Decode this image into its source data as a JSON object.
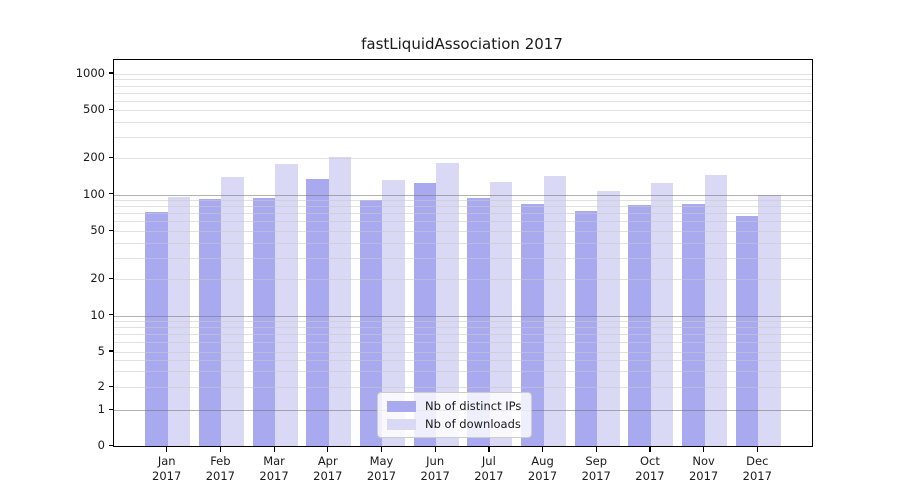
{
  "chart_data": {
    "type": "bar",
    "title": "fastLiquidAssociation 2017",
    "categories": [
      "Jan",
      "Feb",
      "Mar",
      "Apr",
      "May",
      "Jun",
      "Jul",
      "Aug",
      "Sep",
      "Oct",
      "Nov",
      "Dec"
    ],
    "category_year_line": "2017",
    "series": [
      {
        "name": "Nb of distinct IPs",
        "color": "#a9a9f0",
        "values": [
          72,
          92,
          94,
          135,
          90,
          124,
          94,
          83,
          73,
          82,
          84,
          67
        ]
      },
      {
        "name": "Nb of downloads",
        "color": "#d9d9f6",
        "values": [
          96,
          140,
          180,
          207,
          132,
          183,
          128,
          144,
          108,
          124,
          146,
          100
        ]
      }
    ],
    "yscale": "symlog",
    "ytick_labels": [
      "0",
      "1",
      "2",
      "5",
      "10",
      "20",
      "50",
      "100",
      "200",
      "500",
      "1000"
    ],
    "ytick_values": [
      0,
      1,
      2,
      5,
      10,
      20,
      50,
      100,
      200,
      500,
      1000
    ],
    "minor_grid_values": [
      2,
      3,
      4,
      5,
      6,
      7,
      8,
      9,
      20,
      30,
      40,
      50,
      60,
      70,
      80,
      90,
      200,
      300,
      400,
      500,
      600,
      700,
      800,
      900,
      1000
    ],
    "major_grid_values": [
      1,
      10,
      100
    ],
    "ylim": [
      0,
      1340
    ],
    "xlabel": "",
    "ylabel": "",
    "grid": true,
    "legend_position": "lower center",
    "colors": {
      "bar_dark": "#a9a9f0",
      "bar_light": "#d9d9f6",
      "spine": "#000000",
      "text": "#1a1a1a",
      "major_grid": "#b5b5b5",
      "minor_grid": "#e3e3e3",
      "legend_border": "#cccccc"
    }
  }
}
